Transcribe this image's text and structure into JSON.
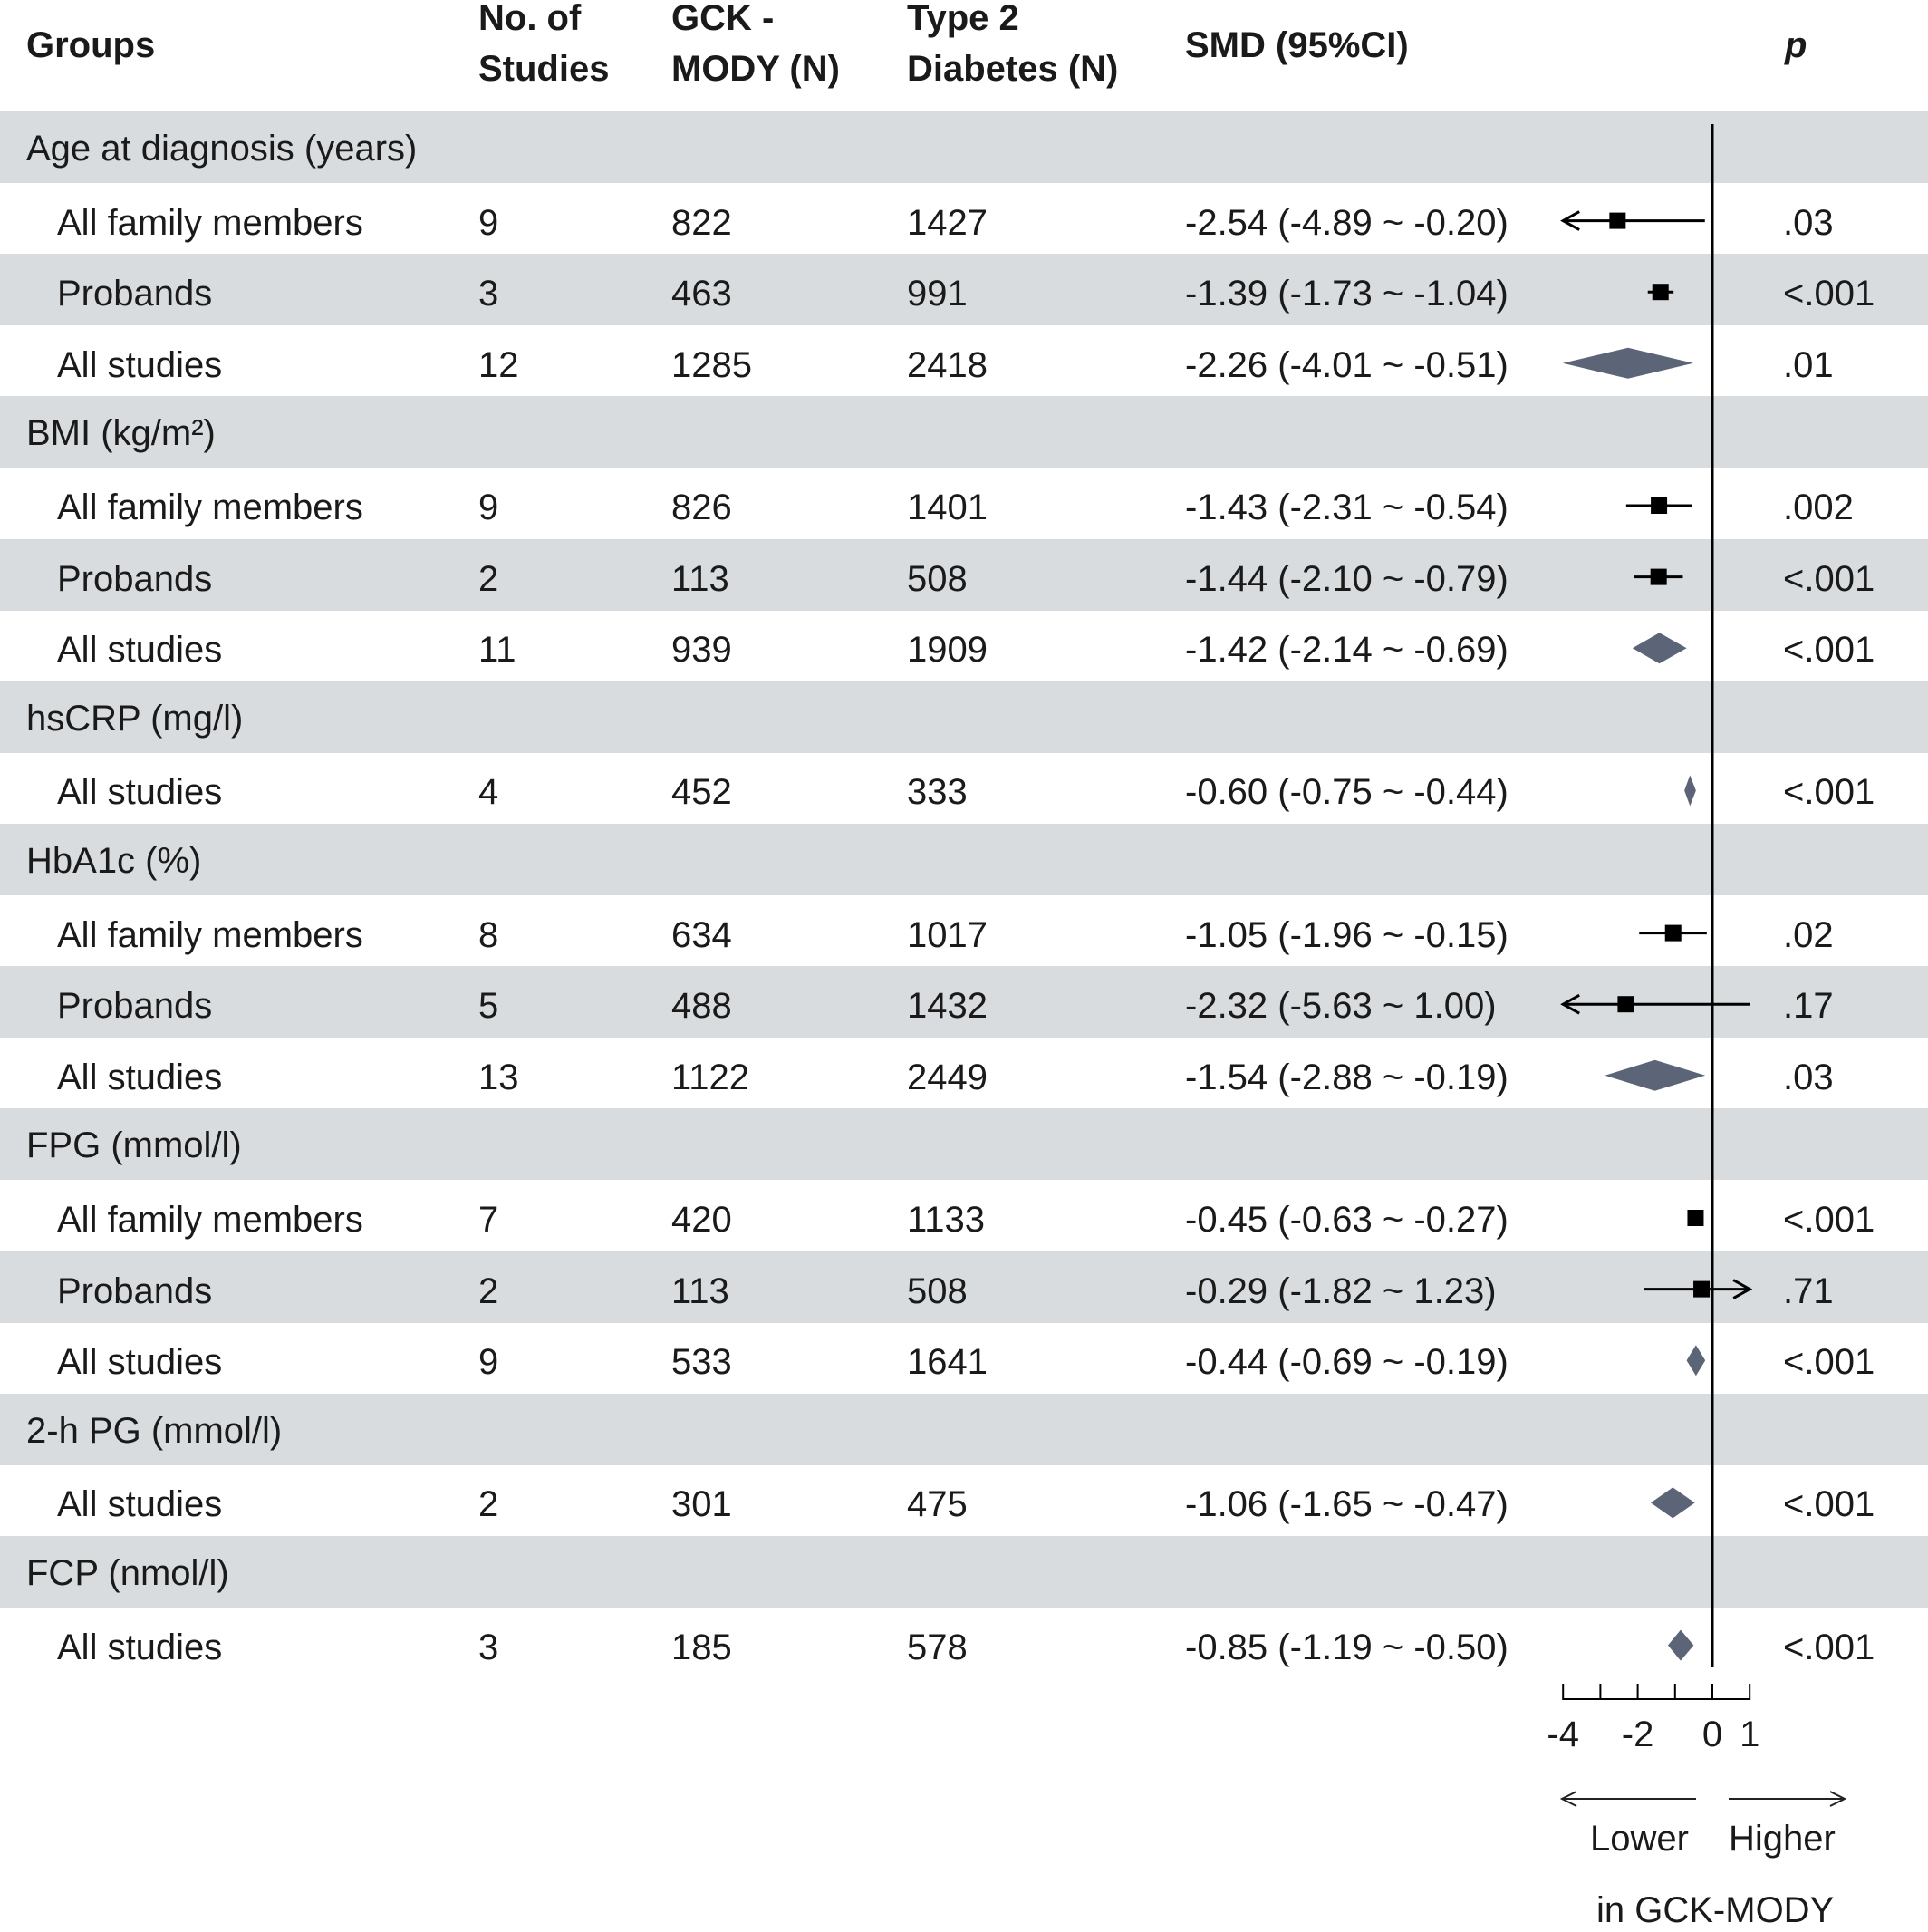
{
  "header": {
    "groups": "Groups",
    "studies_l1": "No. of",
    "studies_l2": "Studies",
    "gck_l1": "GCK -",
    "gck_l2": "MODY (N)",
    "t2d_l1": "Type 2",
    "t2d_l2": "Diabetes (N)",
    "smd": "SMD (95%CI)",
    "p": "p"
  },
  "chart_data": {
    "type": "forest",
    "x_axis": {
      "ticks": [
        -4,
        -2,
        0,
        1
      ],
      "tick_labels": [
        "-4",
        "-2",
        "0",
        "1"
      ],
      "range": [
        -4,
        1
      ]
    },
    "direction_labels": {
      "lower": "Lower",
      "higher": "Higher",
      "subtitle": "in GCK-MODY"
    },
    "colors": {
      "band": "#d9dcde",
      "diamond": "#5b6577",
      "square": "#000000"
    },
    "groups": [
      {
        "title": "Age at diagnosis (years)",
        "rows": [
          {
            "label": "All family members",
            "studies": "9",
            "gck": "822",
            "t2d": "1427",
            "smd_text": "-2.54 (-4.89 ~ -0.20)",
            "p": ".03",
            "est": -2.54,
            "lo": -4.89,
            "hi": -0.2,
            "kind": "square"
          },
          {
            "label": "Probands",
            "studies": "3",
            "gck": "463",
            "t2d": "991",
            "smd_text": "-1.39 (-1.73 ~ -1.04)",
            "p": "<.001",
            "est": -1.39,
            "lo": -1.73,
            "hi": -1.04,
            "kind": "square"
          },
          {
            "label": "All studies",
            "studies": "12",
            "gck": "1285",
            "t2d": "2418",
            "smd_text": "-2.26 (-4.01 ~ -0.51)",
            "p": ".01",
            "est": -2.26,
            "lo": -4.01,
            "hi": -0.51,
            "kind": "diamond"
          }
        ]
      },
      {
        "title": "BMI (kg/m²)",
        "rows": [
          {
            "label": "All family members",
            "studies": "9",
            "gck": "826",
            "t2d": "1401",
            "smd_text": "-1.43 (-2.31 ~ -0.54)",
            "p": ".002",
            "est": -1.43,
            "lo": -2.31,
            "hi": -0.54,
            "kind": "square"
          },
          {
            "label": "Probands",
            "studies": "2",
            "gck": "113",
            "t2d": "508",
            "smd_text": "-1.44 (-2.10 ~ -0.79)",
            "p": "<.001",
            "est": -1.44,
            "lo": -2.1,
            "hi": -0.79,
            "kind": "square"
          },
          {
            "label": "All studies",
            "studies": "11",
            "gck": "939",
            "t2d": "1909",
            "smd_text": "-1.42 (-2.14 ~ -0.69)",
            "p": "<.001",
            "est": -1.42,
            "lo": -2.14,
            "hi": -0.69,
            "kind": "diamond"
          }
        ]
      },
      {
        "title": "hsCRP (mg/l)",
        "rows": [
          {
            "label": "All studies",
            "studies": "4",
            "gck": "452",
            "t2d": "333",
            "smd_text": "-0.60 (-0.75 ~ -0.44)",
            "p": "<.001",
            "est": -0.6,
            "lo": -0.75,
            "hi": -0.44,
            "kind": "diamond"
          }
        ]
      },
      {
        "title": "HbA1c (%)",
        "rows": [
          {
            "label": "All family members",
            "studies": "8",
            "gck": "634",
            "t2d": "1017",
            "smd_text": "-1.05 (-1.96 ~ -0.15)",
            "p": ".02",
            "est": -1.05,
            "lo": -1.96,
            "hi": -0.15,
            "kind": "square"
          },
          {
            "label": "Probands",
            "studies": "5",
            "gck": "488",
            "t2d": "1432",
            "smd_text": "-2.32 (-5.63 ~ 1.00)",
            "p": ".17",
            "est": -2.32,
            "lo": -5.63,
            "hi": 1.0,
            "kind": "square"
          },
          {
            "label": "All studies",
            "studies": "13",
            "gck": "1122",
            "t2d": "2449",
            "smd_text": "-1.54 (-2.88 ~ -0.19)",
            "p": ".03",
            "est": -1.54,
            "lo": -2.88,
            "hi": -0.19,
            "kind": "diamond"
          }
        ]
      },
      {
        "title": "FPG (mmol/l)",
        "rows": [
          {
            "label": "All family members",
            "studies": "7",
            "gck": "420",
            "t2d": "1133",
            "smd_text": "-0.45 (-0.63 ~ -0.27)",
            "p": "<.001",
            "est": -0.45,
            "lo": -0.63,
            "hi": -0.27,
            "kind": "square"
          },
          {
            "label": "Probands",
            "studies": "2",
            "gck": "113",
            "t2d": "508",
            "smd_text": "-0.29 (-1.82 ~ 1.23)",
            "p": ".71",
            "est": -0.29,
            "lo": -1.82,
            "hi": 1.23,
            "kind": "square"
          },
          {
            "label": "All studies",
            "studies": "9",
            "gck": "533",
            "t2d": "1641",
            "smd_text": "-0.44 (-0.69 ~ -0.19)",
            "p": "<.001",
            "est": -0.44,
            "lo": -0.69,
            "hi": -0.19,
            "kind": "diamond"
          }
        ]
      },
      {
        "title": "2-h PG (mmol/l)",
        "rows": [
          {
            "label": "All studies",
            "studies": "2",
            "gck": "301",
            "t2d": "475",
            "smd_text": "-1.06 (-1.65 ~ -0.47)",
            "p": "<.001",
            "est": -1.06,
            "lo": -1.65,
            "hi": -0.47,
            "kind": "diamond"
          }
        ]
      },
      {
        "title": "FCP (nmol/l)",
        "rows": [
          {
            "label": "All studies",
            "studies": "3",
            "gck": "185",
            "t2d": "578",
            "smd_text": "-0.85 (-1.19 ~ -0.50)",
            "p": "<.001",
            "est": -0.85,
            "lo": -1.19,
            "hi": -0.5,
            "kind": "diamond"
          }
        ]
      }
    ]
  }
}
